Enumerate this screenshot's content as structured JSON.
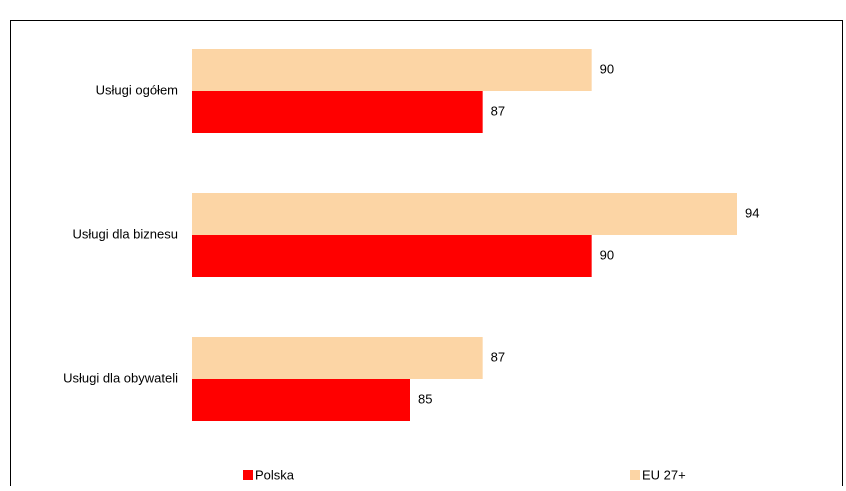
{
  "chart_data": {
    "type": "barh",
    "categories": [
      "Usługi ogółem",
      "Usługi dla biznesu",
      "Usługi dla obywateli"
    ],
    "series": [
      {
        "name": "EU 27+",
        "color": "#fcd5a5",
        "values": [
          90,
          94,
          87
        ]
      },
      {
        "name": "Polska",
        "color": "#ff0000",
        "values": [
          87,
          90,
          85
        ]
      }
    ],
    "xlim": [
      79,
      97
    ],
    "legend": "bottom"
  }
}
